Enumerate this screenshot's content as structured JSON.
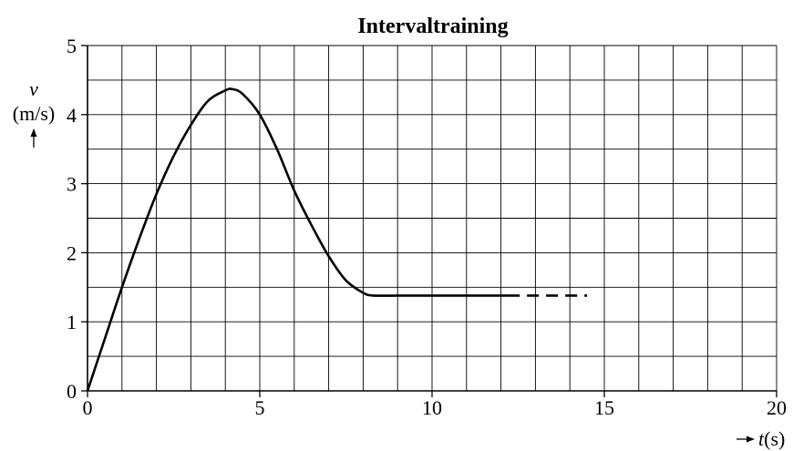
{
  "chart_data": {
    "type": "line",
    "title": "Intervaltraining",
    "ylabel": {
      "symbol": "v",
      "unit": "(m/s)"
    },
    "xlabel": {
      "symbol": "t",
      "unit": "(s)"
    },
    "xlim": [
      0,
      20
    ],
    "ylim": [
      0,
      5
    ],
    "grid": true,
    "x_ticks": [
      0,
      5,
      10,
      15,
      20
    ],
    "y_ticks": [
      0,
      1,
      2,
      3,
      4,
      5
    ],
    "x_tick_labels": [
      "0",
      "5",
      "10",
      "15",
      "20"
    ],
    "y_tick_labels": [
      "0",
      "1",
      "2",
      "3",
      "4",
      "5"
    ],
    "series": [
      {
        "style": "solid",
        "x": [
          0,
          0.5,
          1,
          1.5,
          2,
          2.5,
          3,
          3.5,
          4,
          4.2,
          4.5,
          5,
          5.5,
          6,
          6.5,
          7,
          7.5,
          8,
          8.3,
          9,
          10,
          11,
          12.2
        ],
        "y": [
          0,
          0.75,
          1.5,
          2.2,
          2.85,
          3.4,
          3.85,
          4.2,
          4.35,
          4.37,
          4.3,
          4.0,
          3.5,
          2.9,
          2.4,
          1.95,
          1.6,
          1.42,
          1.38,
          1.38,
          1.38,
          1.38,
          1.38
        ]
      },
      {
        "style": "dashed",
        "x": [
          12.2,
          14.5
        ],
        "y": [
          1.38,
          1.38
        ]
      }
    ]
  }
}
